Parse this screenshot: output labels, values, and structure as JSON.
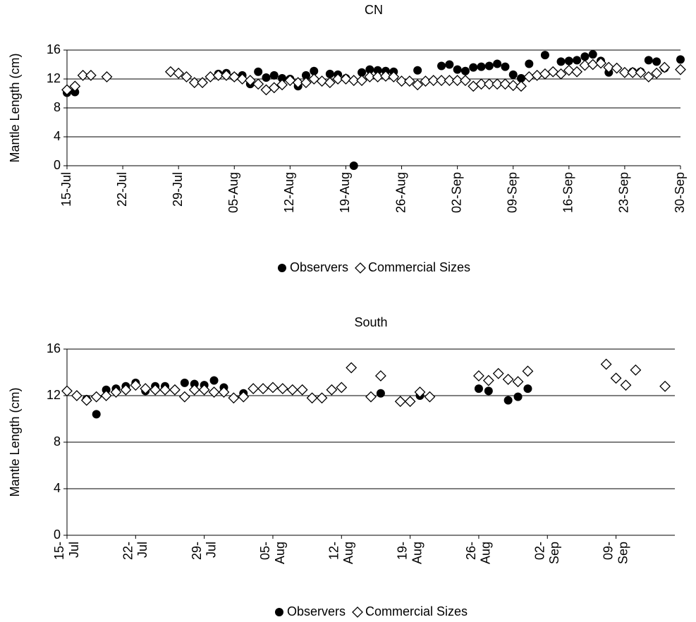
{
  "chart_data": [
    {
      "type": "scatter",
      "title": "CN",
      "y_label": "Mantle Length (cm)",
      "xlim": [
        "15-Jul",
        "30-Sep"
      ],
      "xticks": [
        "15-Jul",
        "22-Jul",
        "29-Jul",
        "05-Aug",
        "12-Aug",
        "19-Aug",
        "26-Aug",
        "02-Sep",
        "09-Sep",
        "16-Sep",
        "23-Sep",
        "30-Sep"
      ],
      "ylim": [
        0,
        16
      ],
      "yticks": [
        0,
        4,
        8,
        12,
        16
      ],
      "grid": true,
      "series": [
        {
          "name": "Observers",
          "color": "#000000",
          "marker": "circle",
          "x": [
            "15-Jul",
            "16-Jul",
            "03-Aug",
            "04-Aug",
            "05-Aug",
            "06-Aug",
            "07-Aug",
            "08-Aug",
            "09-Aug",
            "10-Aug",
            "11-Aug",
            "12-Aug",
            "13-Aug",
            "14-Aug",
            "15-Aug",
            "17-Aug",
            "18-Aug",
            "19-Aug",
            "20-Aug",
            "21-Aug",
            "22-Aug",
            "23-Aug",
            "24-Aug",
            "25-Aug",
            "28-Aug",
            "31-Aug",
            "01-Sep",
            "02-Sep",
            "03-Sep",
            "04-Sep",
            "05-Sep",
            "06-Sep",
            "07-Sep",
            "08-Sep",
            "09-Sep",
            "10-Sep",
            "11-Sep",
            "13-Sep",
            "15-Sep",
            "16-Sep",
            "17-Sep",
            "18-Sep",
            "19-Sep",
            "20-Sep",
            "21-Sep",
            "24-Sep",
            "25-Sep",
            "26-Sep",
            "27-Sep",
            "28-Sep",
            "30-Sep"
          ],
          "values": [
            10.1,
            10.2,
            12.7,
            12.8,
            12.3,
            12.5,
            11.3,
            13,
            12.2,
            12.5,
            12.1,
            12,
            11,
            12.5,
            13.1,
            12.7,
            12.6,
            12.1,
            0,
            12.9,
            13.3,
            13.2,
            13.1,
            13,
            13.2,
            13.8,
            14,
            13.3,
            13.1,
            13.6,
            13.7,
            13.8,
            14.1,
            13.7,
            12.6,
            12.1,
            14.1,
            15.3,
            14.4,
            14.5,
            14.6,
            15.1,
            15.4,
            14.5,
            12.9,
            13,
            13,
            14.6,
            14.4,
            13.5,
            14.7
          ]
        },
        {
          "name": "Commercial Sizes",
          "color": "#000000",
          "marker": "diamond",
          "x": [
            "15-Jul",
            "16-Jul",
            "17-Jul",
            "18-Jul",
            "20-Jul",
            "28-Jul",
            "29-Jul",
            "30-Jul",
            "31-Jul",
            "01-Aug",
            "02-Aug",
            "03-Aug",
            "04-Aug",
            "05-Aug",
            "06-Aug",
            "07-Aug",
            "08-Aug",
            "09-Aug",
            "10-Aug",
            "11-Aug",
            "12-Aug",
            "13-Aug",
            "14-Aug",
            "15-Aug",
            "16-Aug",
            "17-Aug",
            "18-Aug",
            "19-Aug",
            "20-Aug",
            "21-Aug",
            "22-Aug",
            "23-Aug",
            "24-Aug",
            "25-Aug",
            "26-Aug",
            "27-Aug",
            "28-Aug",
            "29-Aug",
            "30-Aug",
            "31-Aug",
            "01-Sep",
            "02-Sep",
            "03-Sep",
            "04-Sep",
            "05-Sep",
            "06-Sep",
            "07-Sep",
            "08-Sep",
            "09-Sep",
            "10-Sep",
            "11-Sep",
            "12-Sep",
            "13-Sep",
            "14-Sep",
            "15-Sep",
            "16-Sep",
            "17-Sep",
            "18-Sep",
            "19-Sep",
            "20-Sep",
            "21-Sep",
            "22-Sep",
            "23-Sep",
            "24-Sep",
            "25-Sep",
            "26-Sep",
            "27-Sep",
            "28-Sep",
            "30-Sep"
          ],
          "values": [
            10.5,
            11,
            12.5,
            12.5,
            12.3,
            13,
            12.8,
            12.3,
            11.5,
            11.5,
            12.3,
            12.5,
            12.5,
            12.3,
            12,
            11.8,
            11.3,
            10.5,
            10.8,
            11.2,
            11.8,
            11.5,
            11.5,
            12,
            11.7,
            11.5,
            12,
            12,
            11.8,
            11.8,
            12.3,
            12.3,
            12.4,
            12.3,
            11.7,
            11.7,
            11.2,
            11.7,
            11.8,
            11.8,
            11.8,
            11.8,
            11.8,
            11,
            11.3,
            11.3,
            11.3,
            11.3,
            11.1,
            11,
            12.3,
            12.5,
            12.7,
            13,
            12.7,
            13.2,
            13,
            13.9,
            14,
            14.2,
            13.6,
            13.5,
            12.9,
            12.9,
            12.9,
            12.3,
            12.8,
            13.6,
            13.3
          ]
        }
      ]
    },
    {
      "type": "scatter",
      "title": "South",
      "y_label": "Mantle Length (cm)",
      "xlim": [
        "15-Jul",
        "15-Sep"
      ],
      "xticks": [
        {
          "value": "15-Jul",
          "label": "15- Jul"
        },
        {
          "value": "22-Jul",
          "label": "22- Jul"
        },
        {
          "value": "29-Jul",
          "label": "29- Jul"
        },
        {
          "value": "05-Aug",
          "label": "05- Aug"
        },
        {
          "value": "12-Aug",
          "label": "12- Aug"
        },
        {
          "value": "19-Aug",
          "label": "19- Aug"
        },
        {
          "value": "26-Aug",
          "label": "26- Aug"
        },
        {
          "value": "02-Sep",
          "label": "02- Sep"
        },
        {
          "value": "09-Sep",
          "label": "09- Sep"
        }
      ],
      "ylim": [
        0,
        16
      ],
      "yticks": [
        0,
        4,
        8,
        12,
        16
      ],
      "grid": true,
      "series": [
        {
          "name": "Observers",
          "color": "#000000",
          "marker": "circle",
          "x": [
            "17-Jul",
            "18-Jul",
            "19-Jul",
            "20-Jul",
            "21-Jul",
            "22-Jul",
            "23-Jul",
            "24-Jul",
            "25-Jul",
            "27-Jul",
            "28-Jul",
            "29-Jul",
            "30-Jul",
            "31-Jul",
            "02-Aug",
            "16-Aug",
            "20-Aug",
            "26-Aug",
            "27-Aug",
            "29-Aug",
            "30-Aug",
            "31-Aug"
          ],
          "values": [
            11.7,
            10.4,
            12.5,
            12.6,
            12.8,
            13.1,
            12.4,
            12.8,
            12.8,
            13.1,
            13,
            12.9,
            13.3,
            12.7,
            12.2,
            12.2,
            12,
            12.6,
            12.4,
            11.6,
            11.9,
            12.6
          ]
        },
        {
          "name": "Commercial Sizes",
          "color": "#000000",
          "marker": "diamond",
          "x": [
            "15-Jul",
            "16-Jul",
            "17-Jul",
            "18-Jul",
            "19-Jul",
            "20-Jul",
            "21-Jul",
            "22-Jul",
            "23-Jul",
            "24-Jul",
            "25-Jul",
            "26-Jul",
            "27-Jul",
            "28-Jul",
            "29-Jul",
            "30-Jul",
            "31-Jul",
            "01-Aug",
            "02-Aug",
            "03-Aug",
            "04-Aug",
            "05-Aug",
            "06-Aug",
            "07-Aug",
            "08-Aug",
            "09-Aug",
            "10-Aug",
            "11-Aug",
            "12-Aug",
            "13-Aug",
            "15-Aug",
            "16-Aug",
            "18-Aug",
            "19-Aug",
            "20-Aug",
            "21-Aug",
            "26-Aug",
            "27-Aug",
            "28-Aug",
            "29-Aug",
            "30-Aug",
            "31-Aug",
            "08-Sep",
            "09-Sep",
            "10-Sep",
            "11-Sep",
            "14-Sep"
          ],
          "values": [
            12.4,
            12,
            11.6,
            11.9,
            12,
            12.3,
            12.5,
            12.9,
            12.6,
            12.5,
            12.5,
            12.5,
            11.9,
            12.5,
            12.5,
            12.3,
            12.3,
            11.8,
            11.9,
            12.6,
            12.6,
            12.7,
            12.6,
            12.5,
            12.5,
            11.8,
            11.8,
            12.5,
            12.7,
            14.4,
            11.9,
            13.7,
            11.5,
            11.5,
            12.3,
            11.9,
            13.7,
            13.3,
            13.9,
            13.4,
            13.2,
            14.1,
            14.7,
            13.5,
            12.9,
            14.2,
            12.8
          ]
        }
      ]
    }
  ]
}
